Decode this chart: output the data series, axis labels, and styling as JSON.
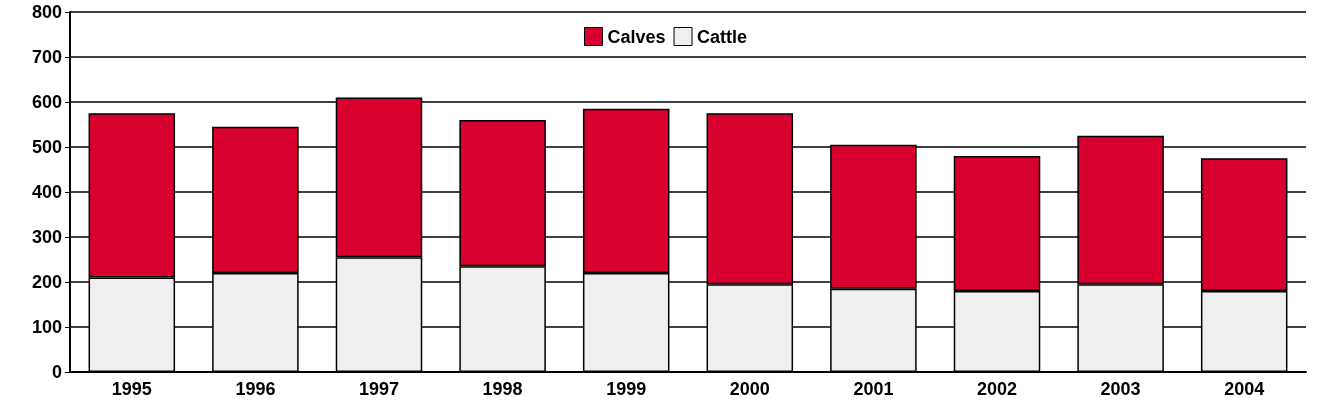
{
  "chart_data": {
    "type": "bar",
    "stacked": true,
    "categories": [
      "1995",
      "1996",
      "1997",
      "1998",
      "1999",
      "2000",
      "2001",
      "2002",
      "2003",
      "2004"
    ],
    "series": [
      {
        "name": "Cattle",
        "color": "#efefef",
        "values": [
          210,
          220,
          255,
          235,
          220,
          195,
          185,
          180,
          195,
          180
        ]
      },
      {
        "name": "Calves",
        "color": "#d7002e",
        "values": [
          365,
          325,
          355,
          325,
          365,
          380,
          320,
          300,
          330,
          295
        ]
      }
    ],
    "ylim": [
      0,
      800
    ],
    "yticks": [
      0,
      100,
      200,
      300,
      400,
      500,
      600,
      700,
      800
    ],
    "grid": "y",
    "legend": "top"
  }
}
